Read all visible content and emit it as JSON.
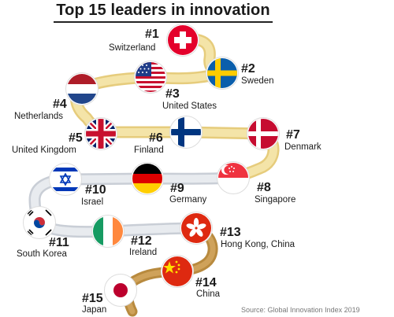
{
  "title": "Top 15 leaders in innovation",
  "source": "Source: Global Innovation Index 2019",
  "colors": {
    "path": "#f0dd9a",
    "path_edge": "#e6cc7c",
    "path_lower": "#d9dde3",
    "path_bottom": "#b88a3e"
  },
  "entries": [
    {
      "rank": "#1",
      "country": "Switzerland",
      "flag": "switzerland-flag"
    },
    {
      "rank": "#2",
      "country": "Sweden",
      "flag": "sweden-flag"
    },
    {
      "rank": "#3",
      "country": "United States",
      "flag": "usa-flag"
    },
    {
      "rank": "#4",
      "country": "Netherlands",
      "flag": "netherlands-flag"
    },
    {
      "rank": "#5",
      "country": "United Kingdom",
      "flag": "uk-flag"
    },
    {
      "rank": "#6",
      "country": "Finland",
      "flag": "finland-flag"
    },
    {
      "rank": "#7",
      "country": "Denmark",
      "flag": "denmark-flag"
    },
    {
      "rank": "#8",
      "country": "Singapore",
      "flag": "singapore-flag"
    },
    {
      "rank": "#9",
      "country": "Germany",
      "flag": "germany-flag"
    },
    {
      "rank": "#10",
      "country": "Israel",
      "flag": "israel-flag"
    },
    {
      "rank": "#11",
      "country": "South Korea",
      "flag": "south-korea-flag"
    },
    {
      "rank": "#12",
      "country": "Ireland",
      "flag": "ireland-flag"
    },
    {
      "rank": "#13",
      "country": "Hong Kong, China",
      "flag": "hong-kong-flag"
    },
    {
      "rank": "#14",
      "country": "China",
      "flag": "china-flag"
    },
    {
      "rank": "#15",
      "country": "Japan",
      "flag": "japan-flag"
    }
  ]
}
